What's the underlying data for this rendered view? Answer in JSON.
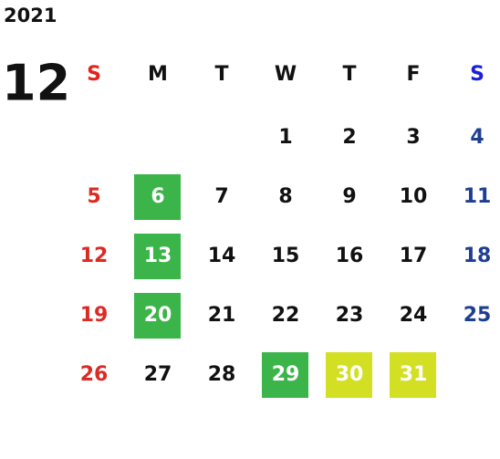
{
  "calendar": {
    "year": "2021",
    "month": "12",
    "weekdays": [
      "S",
      "M",
      "T",
      "W",
      "T",
      "F",
      "S"
    ],
    "weeks": [
      [
        null,
        null,
        null,
        1,
        2,
        3,
        4
      ],
      [
        5,
        {
          "day": 6,
          "fill": "#3bb44a"
        },
        7,
        8,
        9,
        10,
        11
      ],
      [
        12,
        {
          "day": 13,
          "fill": "#3bb44a"
        },
        14,
        15,
        16,
        17,
        18
      ],
      [
        19,
        {
          "day": 20,
          "fill": "#3bb44a"
        },
        21,
        22,
        23,
        24,
        25
      ],
      [
        26,
        27,
        28,
        {
          "day": 29,
          "fill": "#3bb44a"
        },
        {
          "day": 30,
          "fill": "#d3df22"
        },
        {
          "day": 31,
          "fill": "#d3df22"
        },
        null
      ]
    ]
  }
}
